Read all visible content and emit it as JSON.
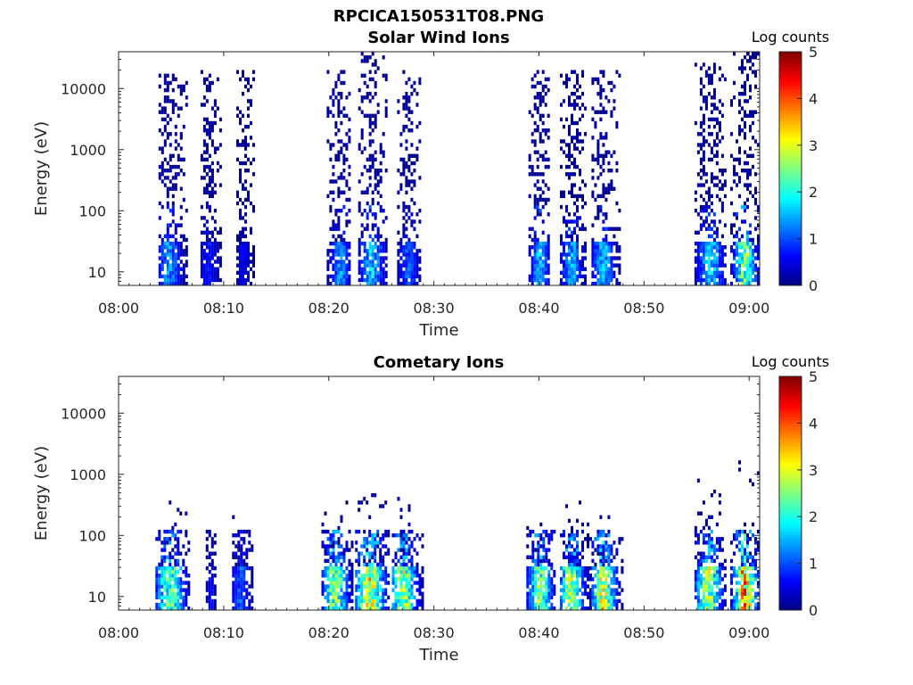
{
  "figure": {
    "title": "RPCICA150531T08.PNG"
  },
  "chart_data": [
    {
      "type": "heatmap",
      "title": "Solar Wind Ions",
      "xlabel": "Time",
      "ylabel": "Energy (eV)",
      "x_ticks": [
        "08:00",
        "08:10",
        "08:20",
        "08:30",
        "08:40",
        "08:50",
        "09:00"
      ],
      "y_ticks": [
        "10",
        "100",
        "1000",
        "10000"
      ],
      "y_scale": "log",
      "ylim": [
        6,
        40000
      ],
      "xlim_minutes": [
        0,
        61
      ],
      "colorbar": {
        "label": "Log counts",
        "ticks": [
          "0",
          "1",
          "2",
          "3",
          "4",
          "5"
        ],
        "range": [
          0,
          5
        ],
        "colormap": "jet"
      },
      "bursts": [
        {
          "start": 3.8,
          "end": 6.5,
          "peak_min": 4.7,
          "low_peak": 1.5,
          "high_max_eV": 15000
        },
        {
          "start": 7.8,
          "end": 9.8,
          "peak_min": 8.5,
          "low_peak": 0.8,
          "high_max_eV": 15000
        },
        {
          "start": 11.2,
          "end": 12.8,
          "peak_min": 11.8,
          "low_peak": 0.6,
          "high_max_eV": 15000
        },
        {
          "start": 19.8,
          "end": 22.0,
          "peak_min": 21.0,
          "low_peak": 1.5,
          "high_max_eV": 15000
        },
        {
          "start": 22.8,
          "end": 25.5,
          "peak_min": 24.0,
          "low_peak": 1.8,
          "high_max_eV": 30000
        },
        {
          "start": 26.5,
          "end": 28.6,
          "peak_min": 27.5,
          "low_peak": 1.2,
          "high_max_eV": 15000
        },
        {
          "start": 39.0,
          "end": 41.0,
          "peak_min": 40.0,
          "low_peak": 1.8,
          "high_max_eV": 15000
        },
        {
          "start": 42.0,
          "end": 44.5,
          "peak_min": 43.0,
          "low_peak": 1.6,
          "high_max_eV": 15000
        },
        {
          "start": 45.0,
          "end": 47.6,
          "peak_min": 46.0,
          "low_peak": 1.7,
          "high_max_eV": 15000
        },
        {
          "start": 54.8,
          "end": 57.8,
          "peak_min": 56.2,
          "low_peak": 1.8,
          "high_max_eV": 20000
        },
        {
          "start": 58.2,
          "end": 60.8,
          "peak_min": 59.5,
          "low_peak": 2.8,
          "high_max_eV": 30000
        }
      ]
    },
    {
      "type": "heatmap",
      "title": "Cometary Ions",
      "xlabel": "Time",
      "ylabel": "Energy (eV)",
      "x_ticks": [
        "08:00",
        "08:10",
        "08:20",
        "08:30",
        "08:40",
        "08:50",
        "09:00"
      ],
      "y_ticks": [
        "10",
        "100",
        "1000",
        "10000"
      ],
      "y_scale": "log",
      "ylim": [
        6,
        40000
      ],
      "xlim_minutes": [
        0,
        61
      ],
      "colorbar": {
        "label": "Log counts",
        "ticks": [
          "0",
          "1",
          "2",
          "3",
          "4",
          "5"
        ],
        "range": [
          0,
          5
        ],
        "colormap": "jet"
      },
      "bursts": [
        {
          "start": 3.5,
          "end": 6.8,
          "peak_min": 4.8,
          "low_peak": 2.6,
          "high_max_eV": 300
        },
        {
          "start": 8.3,
          "end": 9.2,
          "peak_min": 8.7,
          "low_peak": 0.8,
          "high_max_eV": 150
        },
        {
          "start": 10.8,
          "end": 12.8,
          "peak_min": 11.5,
          "low_peak": 1.2,
          "high_max_eV": 150
        },
        {
          "start": 19.3,
          "end": 22.2,
          "peak_min": 20.5,
          "low_peak": 2.8,
          "high_max_eV": 300
        },
        {
          "start": 22.5,
          "end": 25.8,
          "peak_min": 23.8,
          "low_peak": 3.4,
          "high_max_eV": 400
        },
        {
          "start": 26.0,
          "end": 29.0,
          "peak_min": 27.0,
          "low_peak": 3.0,
          "high_max_eV": 300
        },
        {
          "start": 38.8,
          "end": 41.5,
          "peak_min": 40.0,
          "low_peak": 2.8,
          "high_max_eV": 200
        },
        {
          "start": 42.0,
          "end": 44.8,
          "peak_min": 43.0,
          "low_peak": 3.0,
          "high_max_eV": 250
        },
        {
          "start": 45.0,
          "end": 47.8,
          "peak_min": 46.0,
          "low_peak": 3.2,
          "high_max_eV": 200
        },
        {
          "start": 54.8,
          "end": 57.8,
          "peak_min": 56.0,
          "low_peak": 3.0,
          "high_max_eV": 600
        },
        {
          "start": 58.2,
          "end": 60.8,
          "peak_min": 59.5,
          "low_peak": 4.0,
          "high_max_eV": 1500
        }
      ]
    }
  ]
}
